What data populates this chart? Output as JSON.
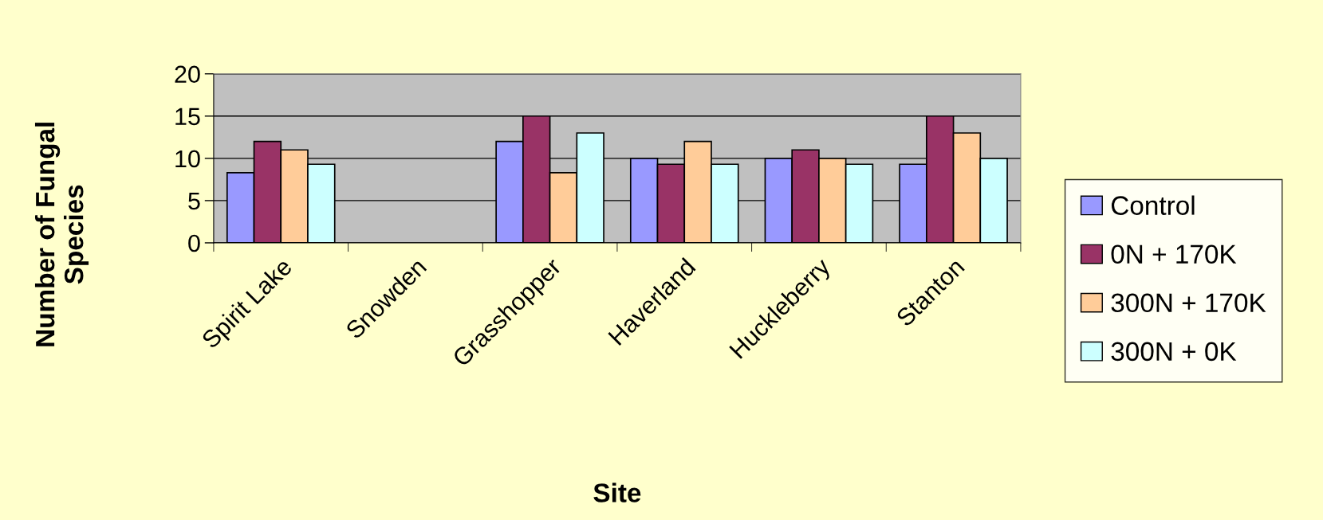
{
  "chart_data": {
    "type": "bar",
    "xlabel": "Site",
    "ylabel": "Number of Fungal\nSpecies",
    "categories": [
      "Spirit Lake",
      "Snowden",
      "Grasshopper",
      "Haverland",
      "Huckleberry",
      "Stanton"
    ],
    "series": [
      {
        "name": "Control",
        "color": "#9999ff",
        "values": [
          8.3,
          null,
          12,
          10,
          10,
          9.3
        ]
      },
      {
        "name": "0N + 170K",
        "color": "#993366",
        "values": [
          12,
          null,
          15,
          9.3,
          11,
          15
        ]
      },
      {
        "name": "300N + 170K",
        "color": "#ffcc99",
        "values": [
          11,
          null,
          8.3,
          12,
          10,
          13
        ]
      },
      {
        "name": "300N + 0K",
        "color": "#ccffff",
        "values": [
          9.3,
          null,
          13,
          9.3,
          9.3,
          10
        ]
      }
    ],
    "ylim": [
      0,
      20
    ],
    "yticks": [
      0,
      5,
      10,
      15,
      20
    ],
    "grid": "y",
    "legend": "right"
  }
}
